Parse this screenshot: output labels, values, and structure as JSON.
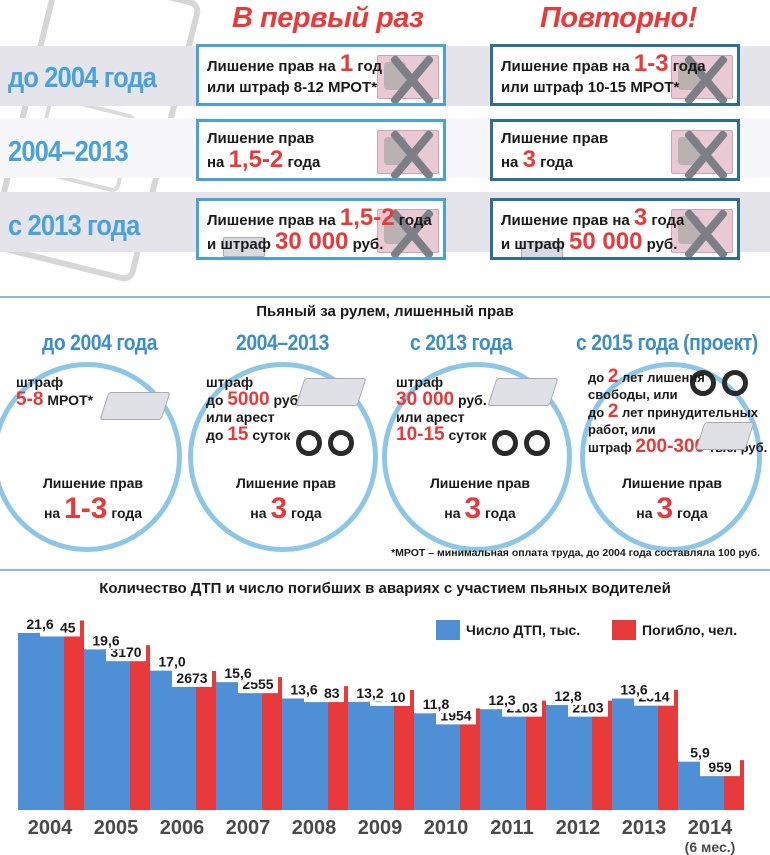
{
  "top": {
    "col_first": "В первый раз",
    "col_repeat": "Повторно!",
    "rows": [
      {
        "label": "до 2004 года",
        "first": {
          "l1": "Лишение прав на ",
          "v1": "1",
          "l1b": " год",
          "l2": "или штраф 8-12 МРОТ*"
        },
        "repeat": {
          "l1": "Лишение прав на ",
          "v1": "1-3",
          "l1b": " года",
          "l2": "или штраф 10-15 МРОТ*"
        }
      },
      {
        "label": "2004–2013",
        "first": {
          "l1": "Лишение прав",
          "l2a": "на ",
          "v2": "1,5-2",
          "l2b": " года"
        },
        "repeat": {
          "l1": "Лишение прав",
          "l2a": "на ",
          "v2": "3",
          "l2b": " года"
        }
      },
      {
        "label": "с 2013 года",
        "first": {
          "l1": "Лишение прав на ",
          "v1": "1,5-2",
          "l1b": " года",
          "l2a": "и штраф ",
          "v2": "30 000",
          "l2b": " руб."
        },
        "repeat": {
          "l1": "Лишение прав на ",
          "v1": "3",
          "l1b": " года",
          "l2a": "и штраф ",
          "v2": "50 000",
          "l2b": " руб."
        }
      }
    ]
  },
  "middle": {
    "title": "Пьяный за рулем, лишенный прав",
    "periods": [
      {
        "label": "до 2004 года",
        "l1": "штраф",
        "v1": "5-8",
        "t1": " МРОТ*",
        "lic_l": "Лишение прав",
        "lic_a": "на ",
        "lic_v": "1-3",
        "lic_b": " года"
      },
      {
        "label": "2004–2013",
        "l1": "штраф",
        "l2a": "до ",
        "v2": "5000",
        "l2b": " руб.",
        "l3": "или арест",
        "l4a": "до ",
        "v4": "15",
        "l4b": " суток",
        "lic_l": "Лишение прав",
        "lic_a": "на ",
        "lic_v": "3",
        "lic_b": " года"
      },
      {
        "label": "с 2013 года",
        "l1": "штраф",
        "v2": "30 000",
        "l2b": " руб.",
        "l3": "или арест",
        "v4": "10-15",
        "l4b": " суток",
        "lic_l": "Лишение прав",
        "lic_a": "на ",
        "lic_v": "3",
        "lic_b": " года"
      },
      {
        "label": "с 2015 года (проект)",
        "l1a": "до ",
        "v1": "2",
        "l1b": " лет лишения",
        "l2": "свободы, или",
        "l3a": "до ",
        "v3": "2",
        "l3b": " лет принудительных",
        "l4": "работ, или",
        "l5a": "штраф ",
        "v5": "200-300",
        "l5b": " тыс. руб.",
        "lic_l": "Лишение прав",
        "lic_a": "на ",
        "lic_v": "3",
        "lic_b": " года"
      }
    ],
    "footnote": "*МРОТ – минимальная оплата труда, до 2004 года составляла 100 руб."
  },
  "chart_data": {
    "type": "bar",
    "title": "Количество ДТП и число погибших в авариях с участием пьяных водителей",
    "categories": [
      "2004",
      "2005",
      "2006",
      "2007",
      "2008",
      "2009",
      "2010",
      "2011",
      "2012",
      "2013",
      "2014"
    ],
    "category_note": "(6 мес.)",
    "series": [
      {
        "name": "Число ДТП, тыс.",
        "color": "#4f8fd6",
        "values": [
          21.6,
          19.6,
          17.0,
          15.6,
          13.6,
          13.2,
          11.8,
          12.3,
          12.8,
          13.6,
          5.9
        ],
        "labels": [
          "21,6",
          "19,6",
          "17,0",
          "15,6",
          "13,6",
          "13,2",
          "11,8",
          "12,3",
          "12,8",
          "13,6",
          "5,9"
        ]
      },
      {
        "name": "Погибло, чел.",
        "color": "#e83a3a",
        "values": [
          3645,
          3170,
          2673,
          2555,
          2383,
          2310,
          1954,
          2103,
          2103,
          2314,
          959
        ],
        "labels": [
          "3645",
          "3170",
          "2673",
          "2555",
          "2383",
          "2310",
          "1954",
          "2103",
          "2103",
          "2314",
          "959"
        ]
      }
    ],
    "legend": "top-right"
  }
}
